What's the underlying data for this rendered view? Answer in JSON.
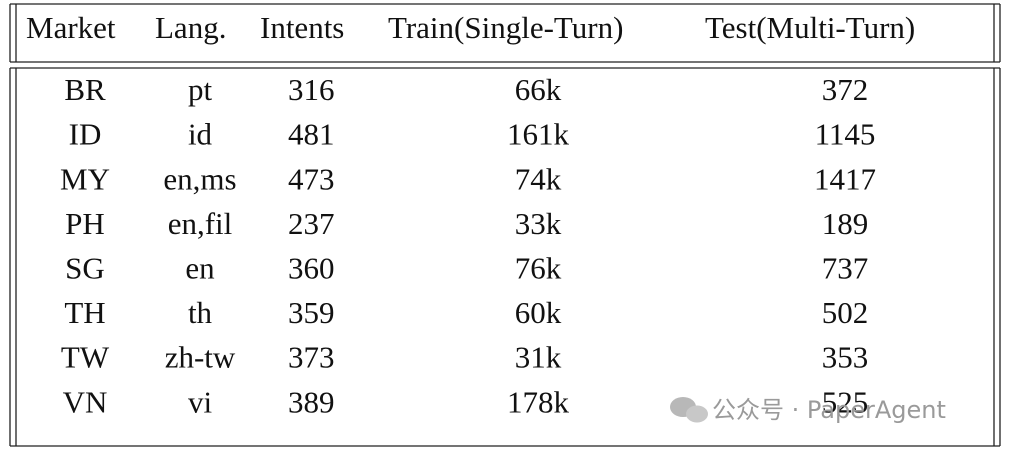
{
  "table": {
    "header": [
      "Market",
      "Lang.",
      "Intents",
      "Train(Single-Turn)",
      "Test(Multi-Turn)"
    ],
    "rows": [
      [
        "BR",
        "pt",
        "316",
        "66k",
        "372"
      ],
      [
        "ID",
        "id",
        "481",
        "161k",
        "1145"
      ],
      [
        "MY",
        "en,ms",
        "473",
        "74k",
        "1417"
      ],
      [
        "PH",
        "en,fil",
        "237",
        "33k",
        "189"
      ],
      [
        "SG",
        "en",
        "360",
        "76k",
        "737"
      ],
      [
        "TH",
        "th",
        "359",
        "60k",
        "502"
      ],
      [
        "TW",
        "zh-tw",
        "373",
        "31k",
        "353"
      ],
      [
        "VN",
        "vi",
        "389",
        "178k",
        "525"
      ]
    ]
  },
  "watermark": "公众号 · PaperAgent"
}
